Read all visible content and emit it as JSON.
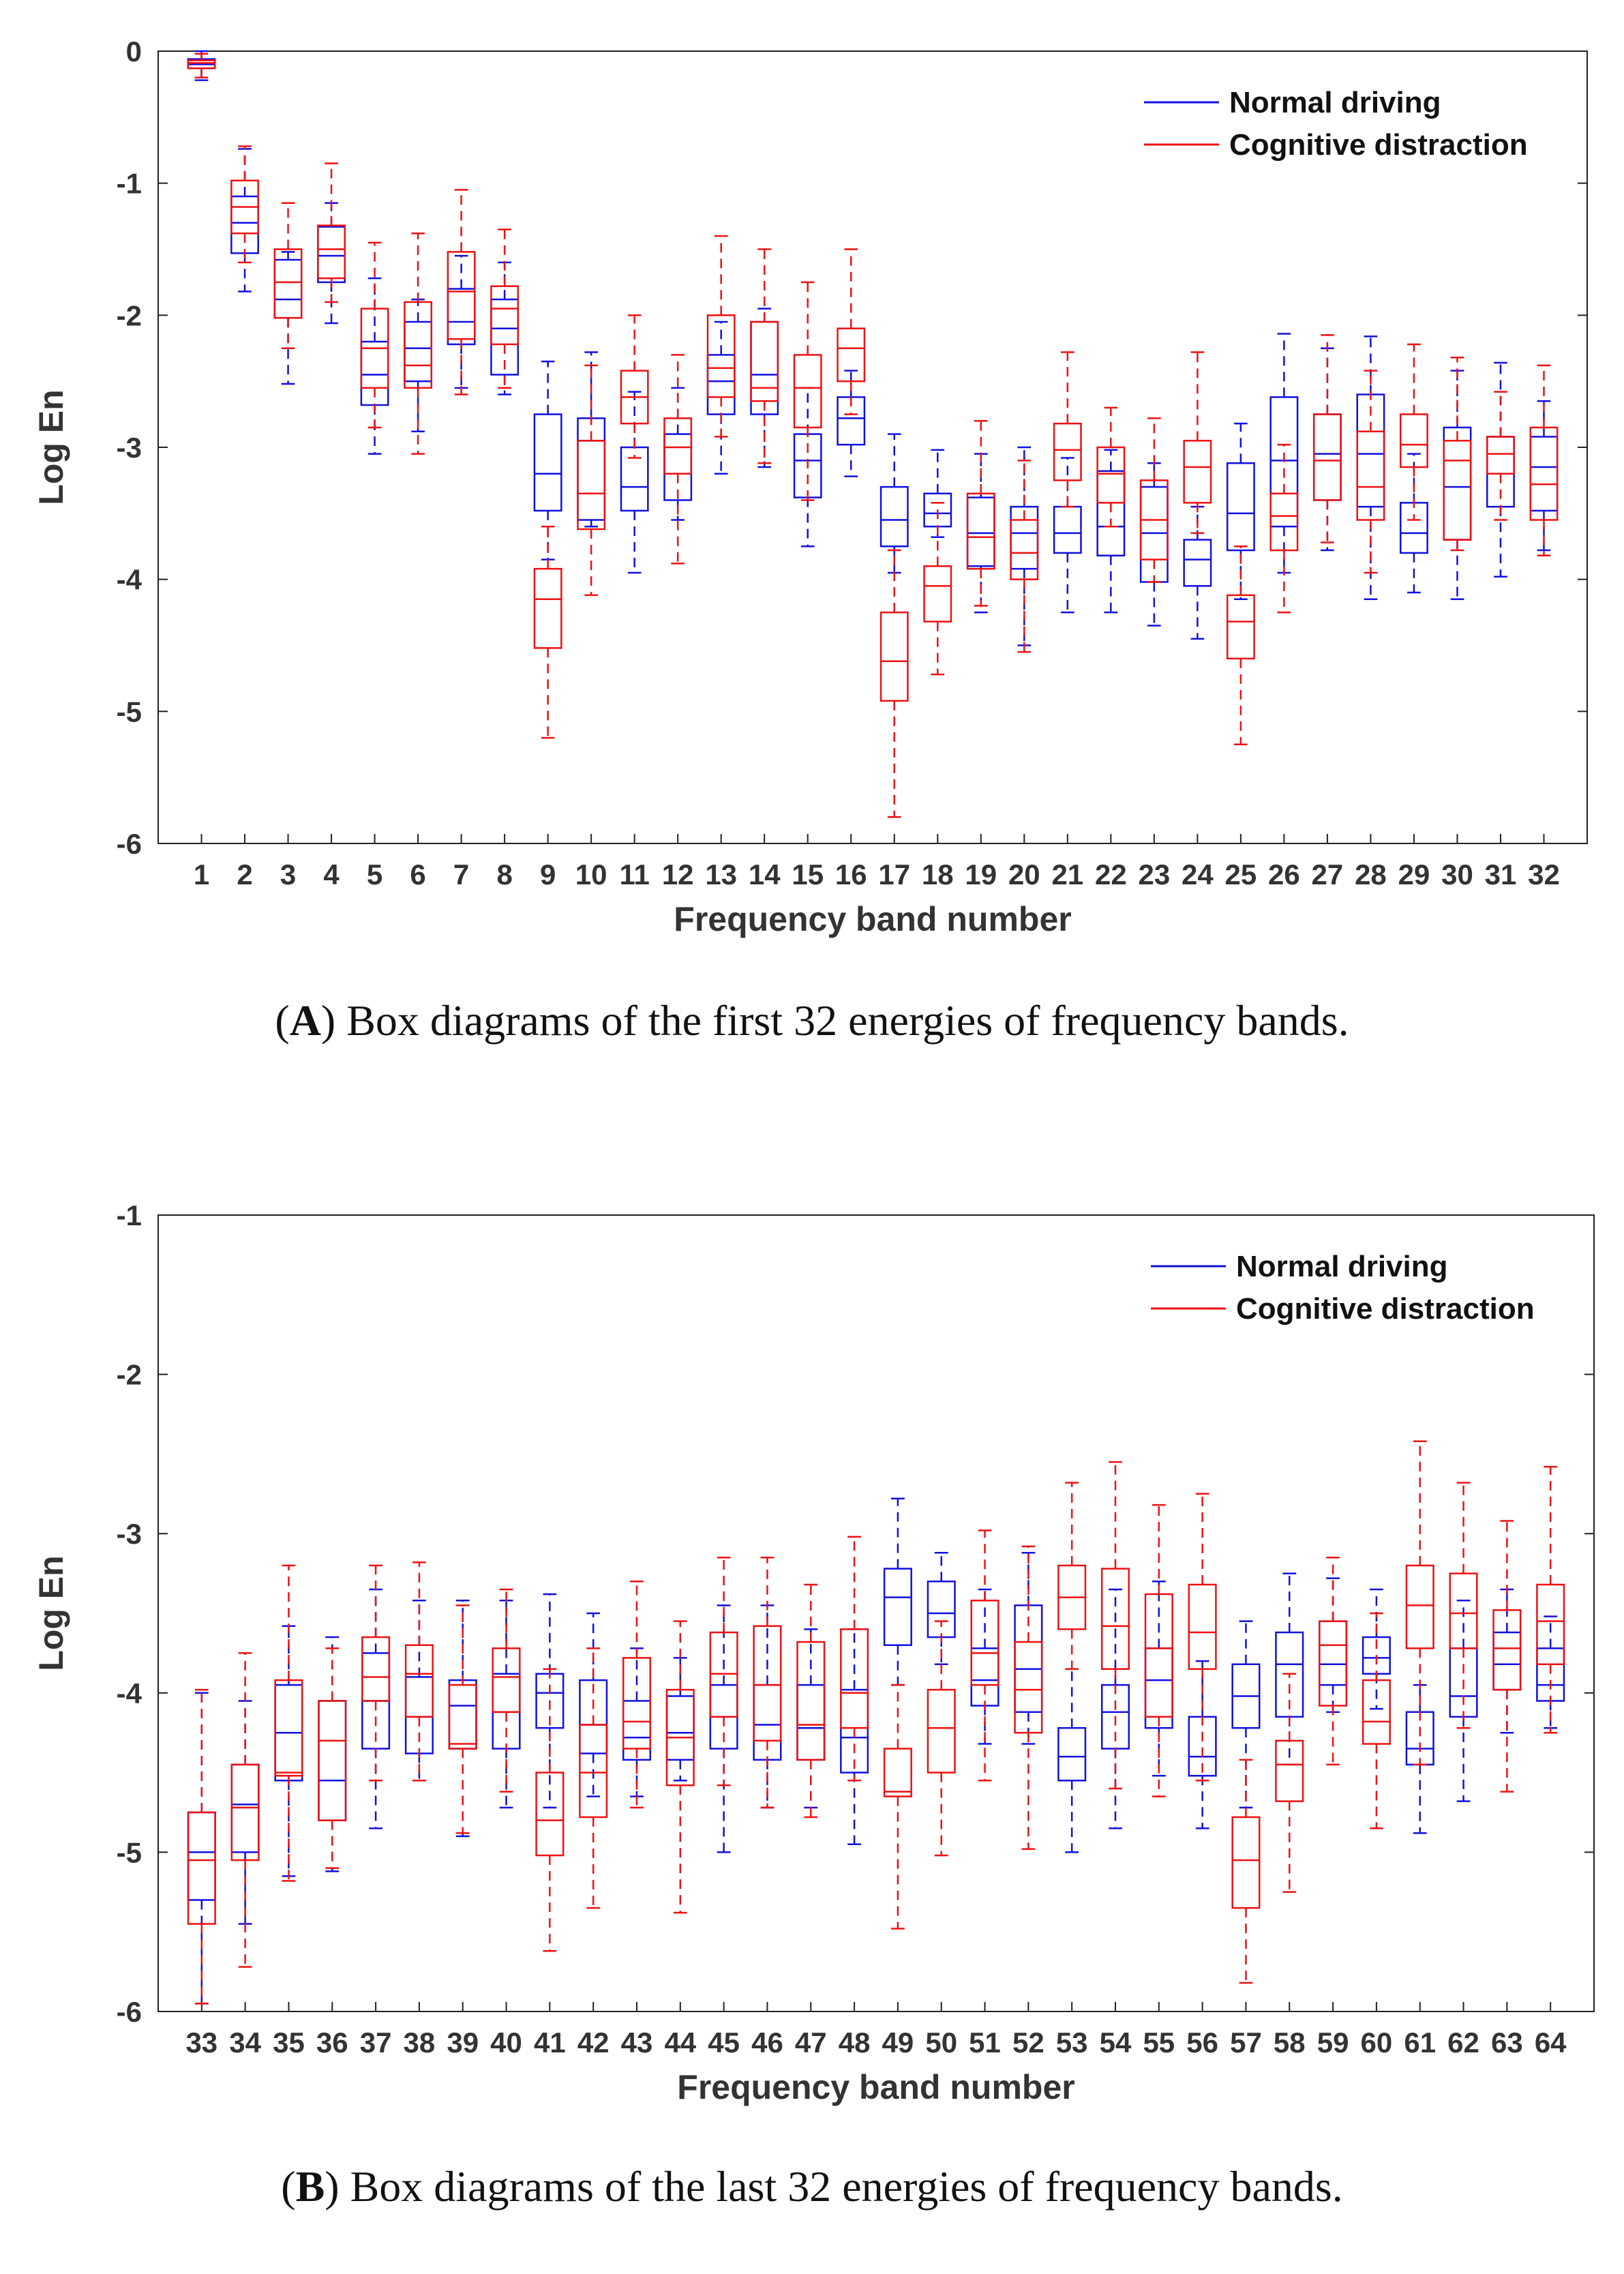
{
  "colors": {
    "normal": "#1010e0",
    "cognitive": "#ee1111",
    "axis": "#222222",
    "text": "#333333"
  },
  "chart_data": [
    {
      "type": "box",
      "panel": "A",
      "xlabel": "Frequency band number",
      "ylabel": "Log En",
      "ylim": [
        -6,
        0
      ],
      "yticks": [
        0,
        -1,
        -2,
        -3,
        -4,
        -5,
        -6
      ],
      "legend_position": "top-right",
      "categories": [
        "1",
        "2",
        "3",
        "4",
        "5",
        "6",
        "7",
        "8",
        "9",
        "10",
        "11",
        "12",
        "13",
        "14",
        "15",
        "16",
        "17",
        "18",
        "19",
        "20",
        "21",
        "22",
        "23",
        "24",
        "25",
        "26",
        "27",
        "28",
        "29",
        "30",
        "31",
        "32"
      ],
      "series": [
        {
          "name": "Normal driving",
          "boxes": [
            [
              -0.22,
              -0.13,
              -0.1,
              -0.06,
              0
            ],
            [
              -1.82,
              -1.53,
              -1.3,
              -1.1,
              -0.74
            ],
            [
              -2.52,
              -2.02,
              -1.88,
              -1.58,
              -1.52
            ],
            [
              -2.06,
              -1.75,
              -1.55,
              -1.33,
              -1.15
            ],
            [
              -3.05,
              -2.68,
              -2.45,
              -2.2,
              -1.72
            ],
            [
              -2.88,
              -2.5,
              -2.25,
              -2.05,
              -1.88
            ],
            [
              -2.55,
              -2.22,
              -2.05,
              -1.8,
              -1.55
            ],
            [
              -2.6,
              -2.45,
              -2.1,
              -1.88,
              -1.6
            ],
            [
              -3.85,
              -3.48,
              -3.2,
              -2.75,
              -2.35
            ],
            [
              -3.6,
              -3.55,
              -2.95,
              -2.78,
              -2.28
            ],
            [
              -3.95,
              -3.48,
              -3.3,
              -3.0,
              -2.58
            ],
            [
              -3.55,
              -3.4,
              -3.2,
              -2.9,
              -2.55
            ],
            [
              -3.2,
              -2.75,
              -2.5,
              -2.3,
              -2.05
            ],
            [
              -3.15,
              -2.75,
              -2.45,
              -2.05,
              -1.95
            ],
            [
              -3.75,
              -3.38,
              -3.1,
              -2.9,
              -2.55
            ],
            [
              -3.22,
              -2.98,
              -2.78,
              -2.62,
              -2.42
            ],
            [
              -3.95,
              -3.75,
              -3.55,
              -3.3,
              -2.9
            ],
            [
              -3.68,
              -3.6,
              -3.5,
              -3.35,
              -3.02
            ],
            [
              -4.25,
              -3.9,
              -3.65,
              -3.38,
              -3.05
            ],
            [
              -4.5,
              -3.92,
              -3.65,
              -3.45,
              -3.0
            ],
            [
              -4.25,
              -3.8,
              -3.65,
              -3.45,
              -3.08
            ],
            [
              -4.25,
              -3.82,
              -3.6,
              -3.18,
              -3.02
            ],
            [
              -4.35,
              -4.02,
              -3.65,
              -3.3,
              -3.12
            ],
            [
              -4.45,
              -4.05,
              -3.85,
              -3.7,
              -3.45
            ],
            [
              -4.15,
              -3.78,
              -3.5,
              -3.12,
              -2.82
            ],
            [
              -3.95,
              -3.6,
              -3.1,
              -2.62,
              -2.14
            ],
            [
              -3.78,
              -3.4,
              -3.05,
              -2.75,
              -2.25
            ],
            [
              -4.15,
              -3.45,
              -3.05,
              -2.6,
              -2.16
            ],
            [
              -4.1,
              -3.8,
              -3.65,
              -3.42,
              -3.05
            ],
            [
              -4.15,
              -3.7,
              -3.3,
              -2.85,
              -2.42
            ],
            [
              -3.98,
              -3.45,
              -3.2,
              -2.92,
              -2.36
            ],
            [
              -3.78,
              -3.48,
              -3.15,
              -2.92,
              -2.65
            ]
          ]
        },
        {
          "name": "Cognitive distraction",
          "boxes": [
            [
              -0.2,
              -0.13,
              -0.09,
              -0.07,
              -0.02
            ],
            [
              -1.6,
              -1.38,
              -1.18,
              -0.98,
              -0.72
            ],
            [
              -2.25,
              -2.02,
              -1.75,
              -1.5,
              -1.15
            ],
            [
              -1.9,
              -1.72,
              -1.5,
              -1.32,
              -0.85
            ],
            [
              -2.85,
              -2.55,
              -2.25,
              -1.95,
              -1.45
            ],
            [
              -3.05,
              -2.55,
              -2.38,
              -1.9,
              -1.38
            ],
            [
              -2.6,
              -2.18,
              -1.82,
              -1.52,
              -1.05
            ],
            [
              -2.55,
              -2.22,
              -1.95,
              -1.78,
              -1.35
            ],
            [
              -5.2,
              -4.52,
              -4.15,
              -3.92,
              -3.6
            ],
            [
              -4.12,
              -3.62,
              -3.35,
              -2.95,
              -2.38
            ],
            [
              -3.08,
              -2.82,
              -2.62,
              -2.42,
              -2.0
            ],
            [
              -3.88,
              -3.2,
              -3.0,
              -2.78,
              -2.3
            ],
            [
              -2.92,
              -2.62,
              -2.4,
              -2.0,
              -1.4
            ],
            [
              -3.12,
              -2.65,
              -2.55,
              -2.05,
              -1.5
            ],
            [
              -3.4,
              -2.85,
              -2.55,
              -2.3,
              -1.75
            ],
            [
              -2.75,
              -2.5,
              -2.25,
              -2.1,
              -1.5
            ],
            [
              -5.8,
              -4.92,
              -4.62,
              -4.25,
              -3.78
            ],
            [
              -4.72,
              -4.32,
              -4.05,
              -3.9,
              -3.42
            ],
            [
              -4.2,
              -3.92,
              -3.68,
              -3.35,
              -2.8
            ],
            [
              -4.55,
              -4.0,
              -3.8,
              -3.55,
              -3.1
            ],
            [
              -3.45,
              -3.25,
              -3.02,
              -2.82,
              -2.28
            ],
            [
              -3.6,
              -3.42,
              -3.2,
              -3.0,
              -2.7
            ],
            [
              -4.02,
              -3.85,
              -3.55,
              -3.25,
              -2.78
            ],
            [
              -3.65,
              -3.42,
              -3.15,
              -2.95,
              -2.28
            ],
            [
              -5.25,
              -4.6,
              -4.32,
              -4.12,
              -3.75
            ],
            [
              -4.25,
              -3.78,
              -3.52,
              -3.35,
              -2.98
            ],
            [
              -3.72,
              -3.4,
              -3.1,
              -2.75,
              -2.15
            ],
            [
              -3.95,
              -3.55,
              -3.3,
              -2.88,
              -2.42
            ],
            [
              -3.55,
              -3.15,
              -2.98,
              -2.75,
              -2.22
            ],
            [
              -3.78,
              -3.7,
              -3.1,
              -2.95,
              -2.32
            ],
            [
              -3.55,
              -3.2,
              -3.05,
              -2.92,
              -2.58
            ],
            [
              -3.82,
              -3.55,
              -3.28,
              -2.85,
              -2.38
            ]
          ]
        }
      ]
    },
    {
      "type": "box",
      "panel": "B",
      "xlabel": "Frequency band number",
      "ylabel": "Log En",
      "ylim": [
        -6,
        -1
      ],
      "yticks": [
        -1,
        -2,
        -3,
        -4,
        -5,
        -6
      ],
      "legend_position": "top-right",
      "categories": [
        "33",
        "34",
        "35",
        "36",
        "37",
        "38",
        "39",
        "40",
        "41",
        "42",
        "43",
        "44",
        "45",
        "46",
        "47",
        "48",
        "49",
        "50",
        "51",
        "52",
        "53",
        "54",
        "55",
        "56",
        "57",
        "58",
        "59",
        "60",
        "61",
        "62",
        "63",
        "64"
      ],
      "series": [
        {
          "name": "Normal driving",
          "boxes": [
            [
              -5.95,
              -5.3,
              -5.0,
              -4.75,
              -4.0
            ],
            [
              -5.45,
              -5.0,
              -4.7,
              -4.45,
              -4.05
            ],
            [
              -5.15,
              -4.55,
              -4.25,
              -3.95,
              -3.58
            ],
            [
              -5.12,
              -4.8,
              -4.55,
              -4.05,
              -3.65
            ],
            [
              -4.85,
              -4.35,
              -4.05,
              -3.75,
              -3.35
            ],
            [
              -4.55,
              -4.38,
              -4.15,
              -3.9,
              -3.42
            ],
            [
              -4.9,
              -4.35,
              -4.08,
              -3.92,
              -3.42
            ],
            [
              -4.72,
              -4.35,
              -4.12,
              -3.88,
              -3.42
            ],
            [
              -4.72,
              -4.22,
              -4.0,
              -3.88,
              -3.38
            ],
            [
              -4.65,
              -4.38,
              -4.2,
              -3.92,
              -3.5
            ],
            [
              -4.65,
              -4.42,
              -4.28,
              -4.05,
              -3.72
            ],
            [
              -4.55,
              -4.42,
              -4.25,
              -4.02,
              -3.78
            ],
            [
              -5.0,
              -4.35,
              -4.15,
              -3.95,
              -3.45
            ],
            [
              -4.72,
              -4.42,
              -4.2,
              -3.95,
              -3.45
            ],
            [
              -4.72,
              -4.42,
              -4.22,
              -3.95,
              -3.6
            ],
            [
              -4.95,
              -4.5,
              -4.28,
              -3.98,
              -3.6
            ],
            [
              -3.95,
              -3.7,
              -3.4,
              -3.22,
              -2.78
            ],
            [
              -3.82,
              -3.65,
              -3.5,
              -3.3,
              -3.12
            ],
            [
              -4.32,
              -4.08,
              -3.92,
              -3.72,
              -3.35
            ],
            [
              -4.32,
              -4.12,
              -3.85,
              -3.45,
              -3.12
            ],
            [
              -5.0,
              -4.55,
              -4.4,
              -4.22,
              -3.85
            ],
            [
              -4.85,
              -4.35,
              -4.12,
              -3.95,
              -3.35
            ],
            [
              -4.52,
              -4.22,
              -3.92,
              -3.72,
              -3.3
            ],
            [
              -4.85,
              -4.52,
              -4.4,
              -4.15,
              -3.8
            ],
            [
              -4.72,
              -4.22,
              -4.02,
              -3.82,
              -3.55
            ],
            [
              -4.45,
              -4.15,
              -3.82,
              -3.62,
              -3.25
            ],
            [
              -4.12,
              -3.95,
              -3.82,
              -3.55,
              -3.28
            ],
            [
              -4.1,
              -3.88,
              -3.78,
              -3.65,
              -3.35
            ],
            [
              -4.88,
              -4.45,
              -4.35,
              -4.12,
              -3.95
            ],
            [
              -4.68,
              -4.15,
              -4.02,
              -3.72,
              -3.42
            ],
            [
              -4.25,
              -3.98,
              -3.82,
              -3.62,
              -3.35
            ],
            [
              -4.22,
              -4.05,
              -3.95,
              -3.72,
              -3.52
            ]
          ]
        },
        {
          "name": "Cognitive distraction",
          "boxes": [
            [
              -5.95,
              -5.45,
              -5.05,
              -4.75,
              -3.98
            ],
            [
              -5.72,
              -5.05,
              -4.72,
              -4.45,
              -3.75
            ],
            [
              -5.18,
              -4.52,
              -4.5,
              -3.92,
              -3.2
            ],
            [
              -5.1,
              -4.8,
              -4.3,
              -4.05,
              -3.72
            ],
            [
              -4.55,
              -4.05,
              -3.9,
              -3.65,
              -3.2
            ],
            [
              -4.55,
              -4.15,
              -3.88,
              -3.7,
              -3.18
            ],
            [
              -4.88,
              -4.35,
              -4.32,
              -3.95,
              -3.45
            ],
            [
              -4.62,
              -4.12,
              -3.9,
              -3.72,
              -3.35
            ],
            [
              -5.62,
              -5.02,
              -4.8,
              -4.5,
              -3.85
            ],
            [
              -5.35,
              -4.78,
              -4.5,
              -4.2,
              -3.72
            ],
            [
              -4.72,
              -4.35,
              -4.18,
              -3.78,
              -3.3
            ],
            [
              -5.38,
              -4.58,
              -4.28,
              -3.98,
              -3.55
            ],
            [
              -4.58,
              -4.15,
              -3.88,
              -3.62,
              -3.15
            ],
            [
              -4.72,
              -4.3,
              -3.95,
              -3.58,
              -3.15
            ],
            [
              -4.78,
              -4.42,
              -4.2,
              -3.68,
              -3.32
            ],
            [
              -4.55,
              -4.22,
              -4.0,
              -3.6,
              -3.02
            ],
            [
              -5.48,
              -4.65,
              -4.62,
              -4.35,
              -3.95
            ],
            [
              -5.02,
              -4.5,
              -4.22,
              -3.98,
              -3.55
            ],
            [
              -4.55,
              -3.95,
              -3.75,
              -3.42,
              -2.98
            ],
            [
              -4.98,
              -4.25,
              -3.98,
              -3.68,
              -3.08
            ],
            [
              -3.85,
              -3.6,
              -3.4,
              -3.2,
              -2.68
            ],
            [
              -4.6,
              -3.85,
              -3.58,
              -3.22,
              -2.55
            ],
            [
              -4.65,
              -4.15,
              -3.72,
              -3.38,
              -2.82
            ],
            [
              -4.55,
              -3.85,
              -3.62,
              -3.32,
              -2.75
            ],
            [
              -5.82,
              -5.35,
              -5.05,
              -4.78,
              -4.42
            ],
            [
              -5.25,
              -4.68,
              -4.45,
              -4.3,
              -3.88
            ],
            [
              -4.45,
              -4.08,
              -3.7,
              -3.55,
              -3.15
            ],
            [
              -4.85,
              -4.32,
              -4.18,
              -3.92,
              -3.5
            ],
            [
              -4.45,
              -3.72,
              -3.45,
              -3.2,
              -2.42
            ],
            [
              -4.22,
              -3.72,
              -3.5,
              -3.25,
              -2.68
            ],
            [
              -4.62,
              -3.98,
              -3.72,
              -3.48,
              -2.92
            ],
            [
              -4.25,
              -3.82,
              -3.55,
              -3.32,
              -2.58
            ]
          ]
        }
      ]
    }
  ],
  "captions": [
    {
      "label": "A",
      "text": "Box diagrams of the first 32 energies of frequency bands."
    },
    {
      "label": "B",
      "text": "Box diagrams of the last 32 energies of frequency bands."
    }
  ]
}
